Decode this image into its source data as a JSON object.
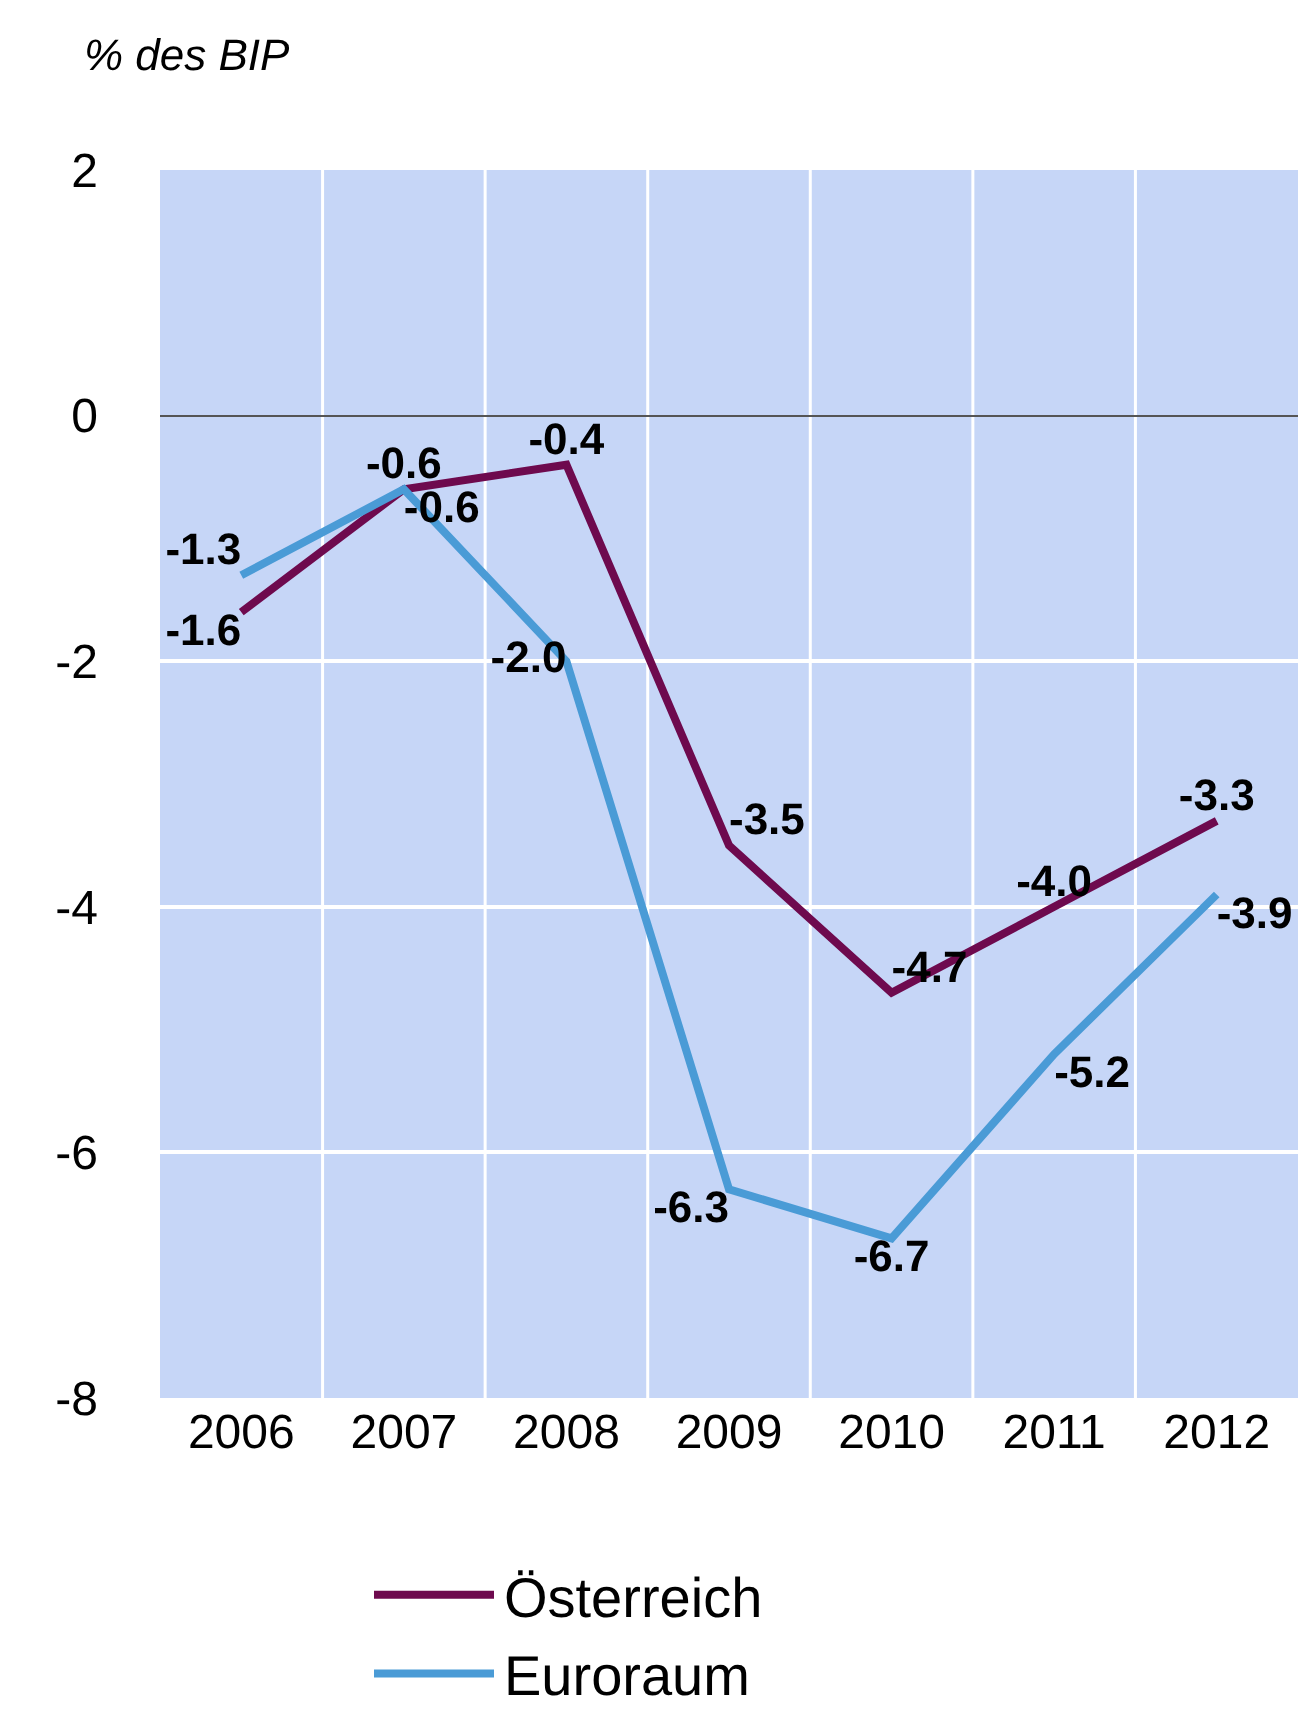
{
  "chart_data": {
    "type": "line",
    "ylabel": "% des BIP",
    "categories": [
      "2006",
      "2007",
      "2008",
      "2009",
      "2010",
      "2011",
      "2012"
    ],
    "series": [
      {
        "name": "Österreich",
        "color": "#6e0a4e",
        "values": [
          -1.6,
          -0.6,
          -0.4,
          -3.5,
          -4.7,
          -4.0,
          -3.3
        ],
        "value_labels": [
          "-1.6",
          "-0.6",
          "-0.4",
          "-3.5",
          "-4.7",
          "-4.0",
          "-3.3"
        ]
      },
      {
        "name": "Euroraum",
        "color": "#4a9bd6",
        "values": [
          -1.3,
          -0.6,
          -2.0,
          -6.3,
          -6.7,
          -5.2,
          -3.9
        ],
        "value_labels": [
          "-1.3",
          "-0.6",
          "-2.0",
          "-6.3",
          "-6.7",
          "-5.2",
          "-3.9"
        ]
      }
    ],
    "ylim": [
      -8,
      2
    ],
    "yticks": [
      -8,
      -6,
      -4,
      -2,
      0,
      2
    ],
    "grid": true,
    "legend": "bottom",
    "marker": "none",
    "line_style": "solid"
  }
}
